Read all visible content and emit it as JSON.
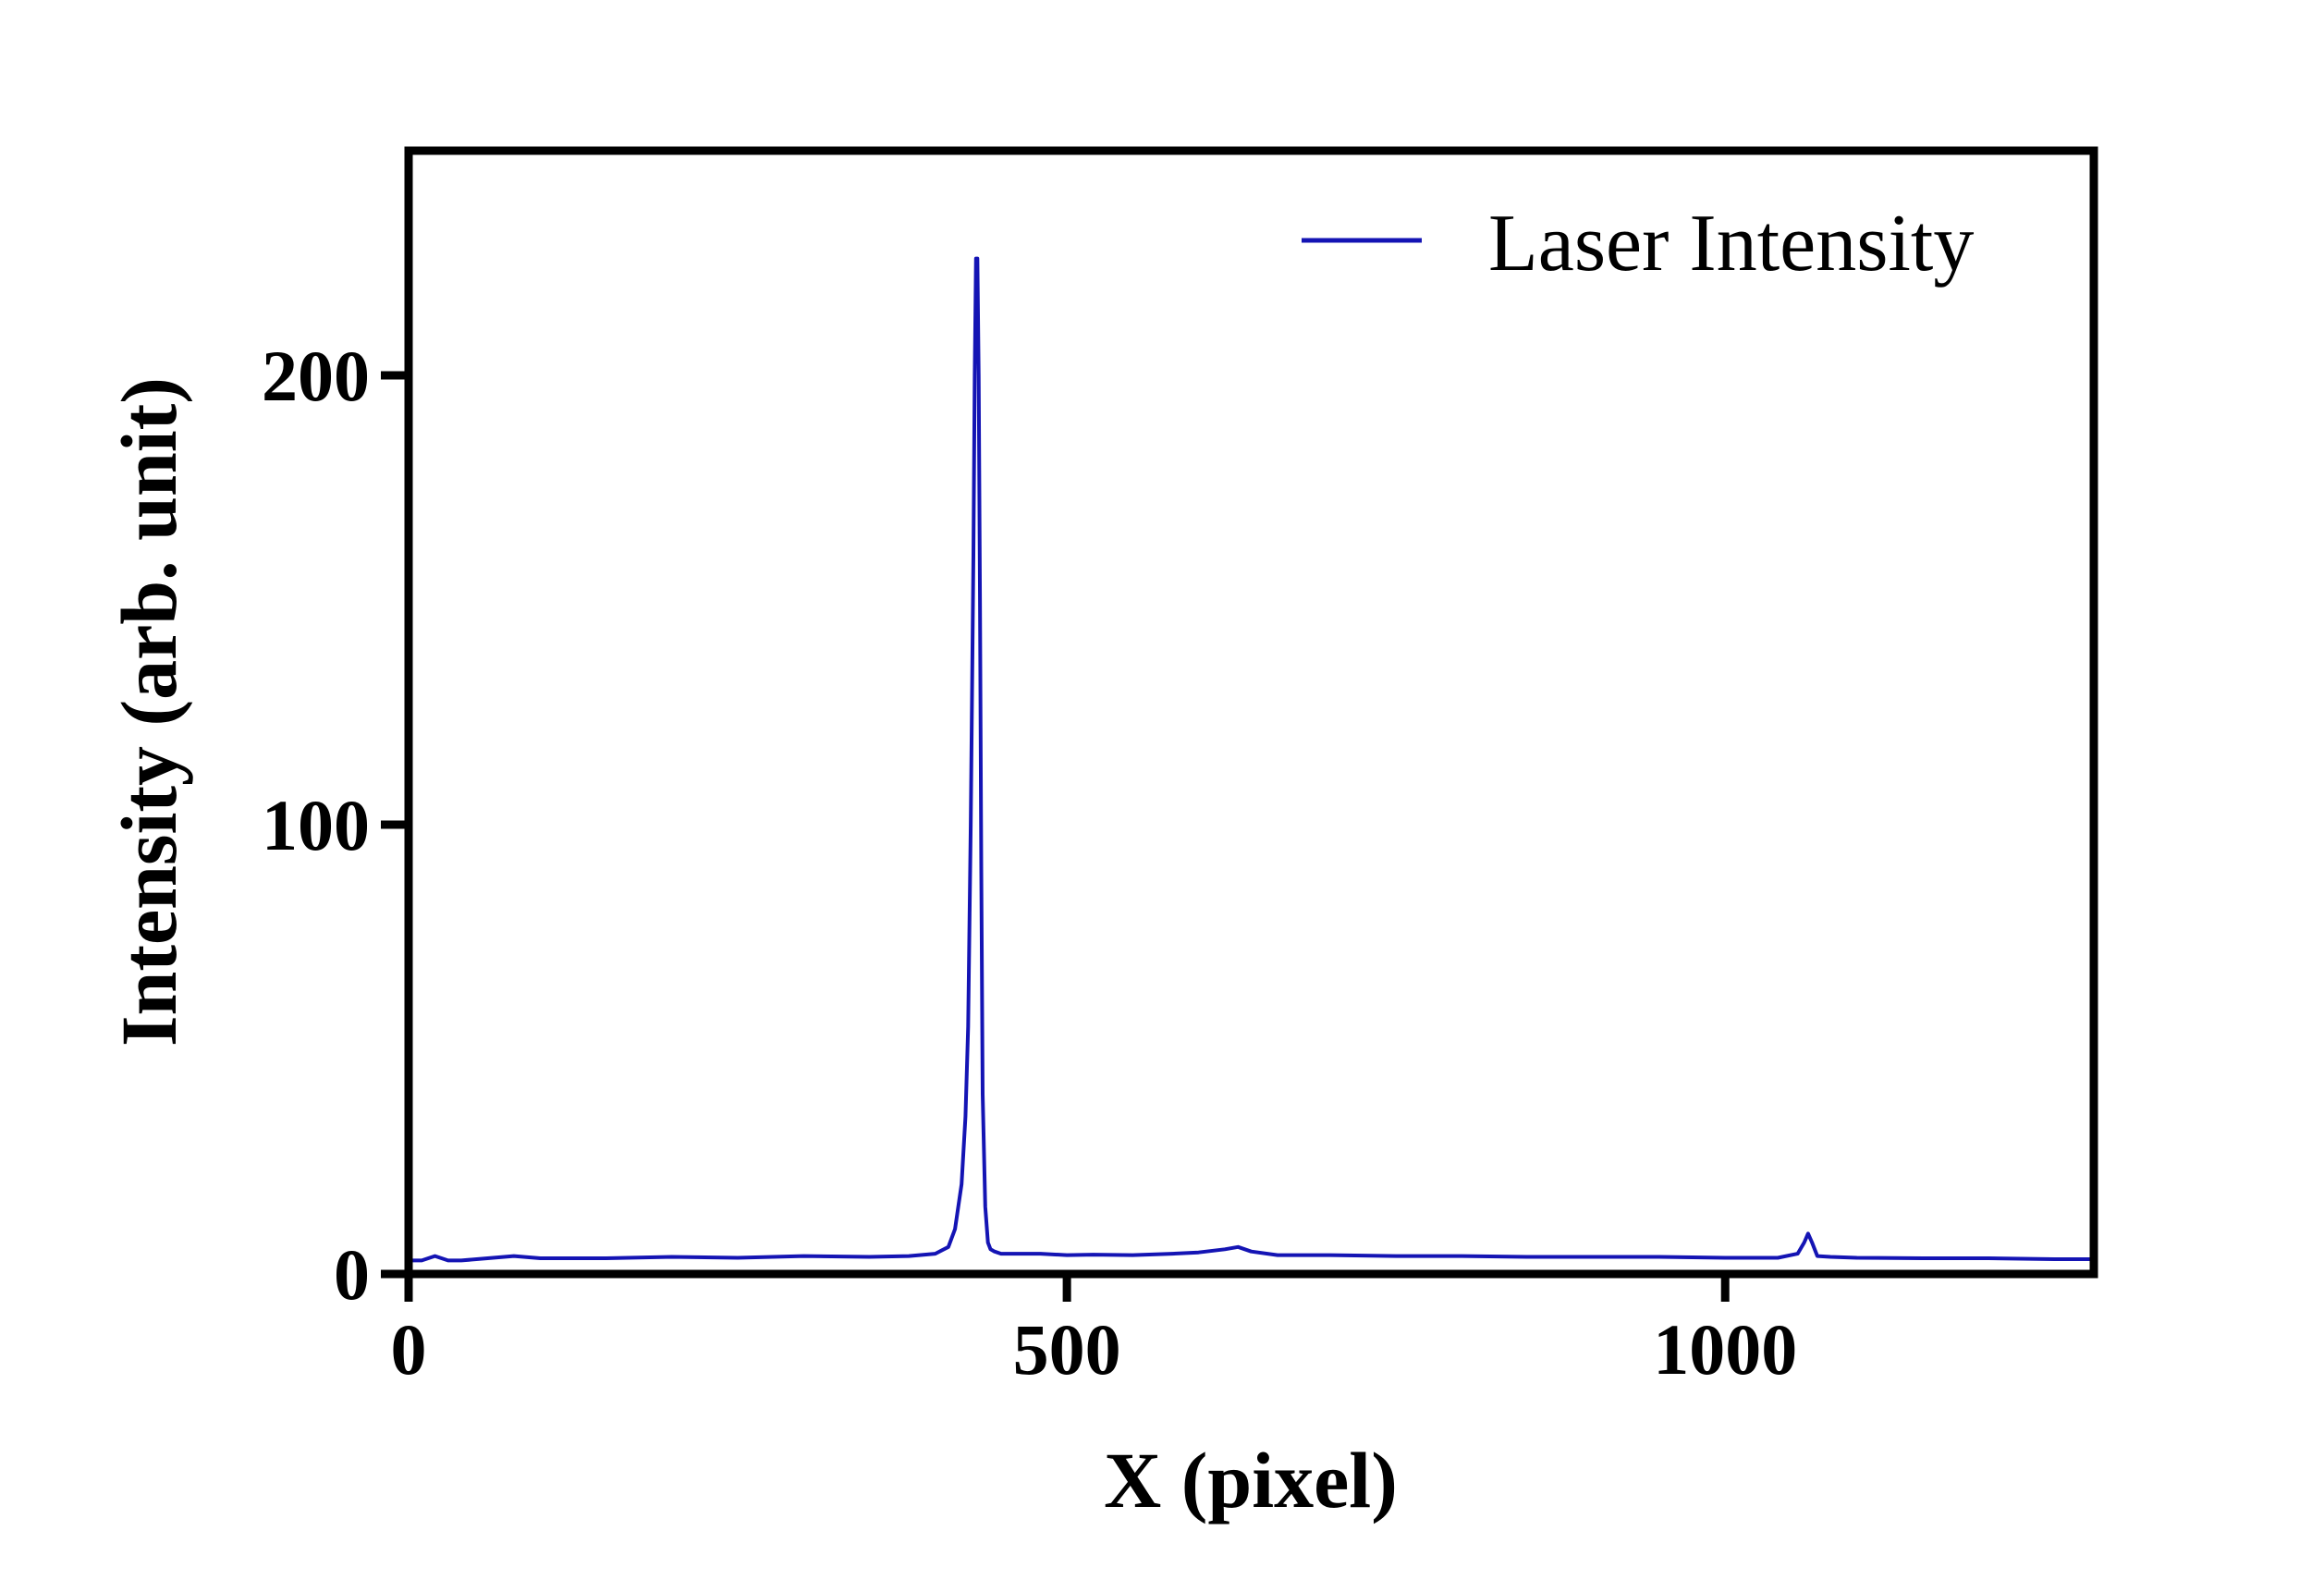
{
  "chart_data": {
    "type": "line",
    "title": "",
    "xlabel": "X (pixel)",
    "ylabel": "Intensity (arb. unit)",
    "xlim": [
      0,
      1280
    ],
    "ylim": [
      0,
      250
    ],
    "xticks": [
      0,
      500,
      1000
    ],
    "yticks": [
      0,
      100,
      200
    ],
    "grid": false,
    "legend": {
      "position": "top-right"
    },
    "series": [
      {
        "name": "Laser Intensity",
        "color": "#1414b4",
        "x": [
          0,
          10,
          20,
          30,
          40,
          60,
          80,
          100,
          150,
          200,
          250,
          300,
          350,
          380,
          400,
          410,
          415,
          420,
          423,
          425,
          427,
          429,
          430,
          431,
          432,
          433,
          434,
          435,
          436,
          438,
          440,
          442,
          445,
          450,
          460,
          480,
          500,
          520,
          550,
          580,
          600,
          620,
          630,
          640,
          660,
          700,
          750,
          800,
          850,
          900,
          950,
          1000,
          1040,
          1055,
          1060,
          1063,
          1066,
          1070,
          1080,
          1100,
          1150,
          1200,
          1250,
          1280
        ],
        "y": [
          3,
          3,
          4,
          3,
          3,
          3.5,
          4,
          3.5,
          3.5,
          3.8,
          3.6,
          4,
          3.8,
          4,
          4.5,
          6,
          10,
          20,
          35,
          55,
          100,
          160,
          200,
          226,
          226,
          200,
          150,
          90,
          40,
          15,
          7,
          5.5,
          5,
          4.5,
          4.5,
          4.5,
          4.2,
          4.3,
          4.2,
          4.5,
          4.8,
          5.5,
          6,
          5,
          4.2,
          4.2,
          4,
          4,
          3.8,
          3.8,
          3.8,
          3.6,
          3.6,
          4.5,
          7,
          9,
          7,
          4,
          3.8,
          3.6,
          3.5,
          3.5,
          3.3,
          3.3
        ]
      }
    ]
  }
}
